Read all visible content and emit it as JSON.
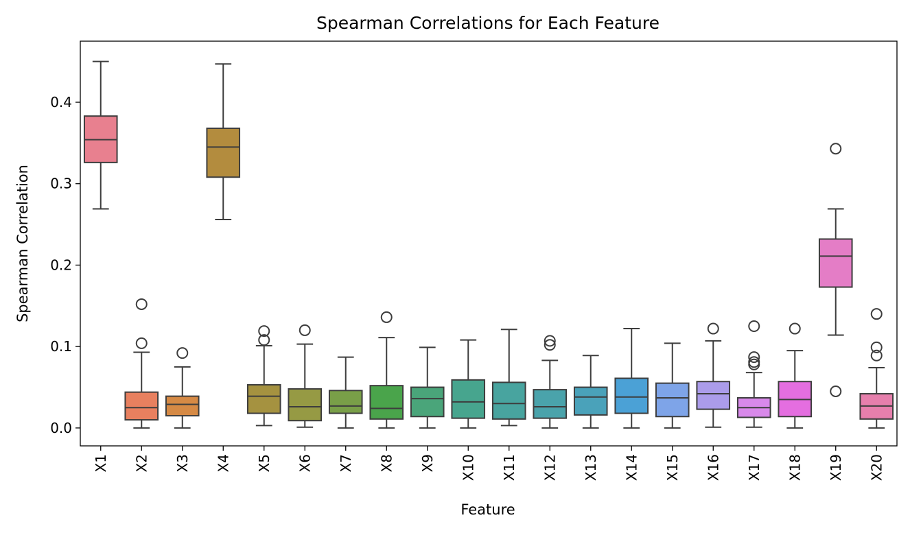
{
  "chart_data": {
    "type": "box",
    "title": "Spearman Correlations for Each Feature",
    "xlabel": "Feature",
    "ylabel": "Spearman Correlation",
    "ylim": [
      -0.022,
      0.475
    ],
    "yticks": [
      0.0,
      0.1,
      0.2,
      0.3,
      0.4
    ],
    "ytick_labels": [
      "0.0",
      "0.1",
      "0.2",
      "0.3",
      "0.4"
    ],
    "grid": false,
    "legend": "none",
    "categories": [
      "X1",
      "X2",
      "X3",
      "X4",
      "X5",
      "X6",
      "X7",
      "X8",
      "X9",
      "X10",
      "X11",
      "X12",
      "X13",
      "X14",
      "X15",
      "X16",
      "X17",
      "X18",
      "X19",
      "X20"
    ],
    "boxes": [
      {
        "name": "X1",
        "color": "#e8808f",
        "whisker_low": 0.269,
        "q1": 0.326,
        "median": 0.354,
        "q3": 0.383,
        "whisker_high": 0.45,
        "outliers": []
      },
      {
        "name": "X2",
        "color": "#e8805f",
        "whisker_low": 0.0,
        "q1": 0.01,
        "median": 0.025,
        "q3": 0.044,
        "whisker_high": 0.093,
        "outliers": [
          0.104,
          0.152
        ]
      },
      {
        "name": "X3",
        "color": "#d68a45",
        "whisker_low": 0.0,
        "q1": 0.015,
        "median": 0.029,
        "q3": 0.039,
        "whisker_high": 0.075,
        "outliers": [
          0.092
        ]
      },
      {
        "name": "X4",
        "color": "#b38c3e",
        "whisker_low": 0.256,
        "q1": 0.308,
        "median": 0.345,
        "q3": 0.368,
        "whisker_high": 0.447,
        "outliers": []
      },
      {
        "name": "X5",
        "color": "#a59240",
        "whisker_low": 0.003,
        "q1": 0.018,
        "median": 0.039,
        "q3": 0.053,
        "whisker_high": 0.101,
        "outliers": [
          0.108,
          0.119
        ]
      },
      {
        "name": "X6",
        "color": "#969a44",
        "whisker_low": 0.001,
        "q1": 0.009,
        "median": 0.026,
        "q3": 0.048,
        "whisker_high": 0.103,
        "outliers": [
          0.12
        ]
      },
      {
        "name": "X7",
        "color": "#799f48",
        "whisker_low": 0.0,
        "q1": 0.018,
        "median": 0.027,
        "q3": 0.046,
        "whisker_high": 0.087,
        "outliers": []
      },
      {
        "name": "X8",
        "color": "#4aa44b",
        "whisker_low": 0.0,
        "q1": 0.011,
        "median": 0.024,
        "q3": 0.052,
        "whisker_high": 0.111,
        "outliers": [
          0.136
        ]
      },
      {
        "name": "X9",
        "color": "#4aa57a",
        "whisker_low": 0.0,
        "q1": 0.014,
        "median": 0.036,
        "q3": 0.05,
        "whisker_high": 0.099,
        "outliers": []
      },
      {
        "name": "X10",
        "color": "#47a58e",
        "whisker_low": 0.0,
        "q1": 0.012,
        "median": 0.032,
        "q3": 0.059,
        "whisker_high": 0.108,
        "outliers": []
      },
      {
        "name": "X11",
        "color": "#48a49f",
        "whisker_low": 0.003,
        "q1": 0.011,
        "median": 0.03,
        "q3": 0.056,
        "whisker_high": 0.121,
        "outliers": []
      },
      {
        "name": "X12",
        "color": "#4aa3ab",
        "whisker_low": 0.0,
        "q1": 0.012,
        "median": 0.026,
        "q3": 0.047,
        "whisker_high": 0.083,
        "outliers": [
          0.102,
          0.107
        ]
      },
      {
        "name": "X13",
        "color": "#4aa2ba",
        "whisker_low": 0.0,
        "q1": 0.016,
        "median": 0.038,
        "q3": 0.05,
        "whisker_high": 0.089,
        "outliers": []
      },
      {
        "name": "X14",
        "color": "#4ba1d6",
        "whisker_low": 0.0,
        "q1": 0.018,
        "median": 0.038,
        "q3": 0.061,
        "whisker_high": 0.122,
        "outliers": []
      },
      {
        "name": "X15",
        "color": "#7ea4e8",
        "whisker_low": 0.0,
        "q1": 0.014,
        "median": 0.037,
        "q3": 0.055,
        "whisker_high": 0.104,
        "outliers": []
      },
      {
        "name": "X16",
        "color": "#ab9cea",
        "whisker_low": 0.001,
        "q1": 0.023,
        "median": 0.042,
        "q3": 0.057,
        "whisker_high": 0.107,
        "outliers": [
          0.122
        ]
      },
      {
        "name": "X17",
        "color": "#d889ea",
        "whisker_low": 0.001,
        "q1": 0.013,
        "median": 0.025,
        "q3": 0.037,
        "whisker_high": 0.068,
        "outliers": [
          0.078,
          0.081,
          0.087,
          0.125
        ]
      },
      {
        "name": "X18",
        "color": "#e46ee0",
        "whisker_low": 0.0,
        "q1": 0.014,
        "median": 0.035,
        "q3": 0.057,
        "whisker_high": 0.095,
        "outliers": [
          0.122
        ]
      },
      {
        "name": "X19",
        "color": "#e47dc6",
        "whisker_low": 0.114,
        "q1": 0.173,
        "median": 0.211,
        "q3": 0.232,
        "whisker_high": 0.269,
        "outliers": [
          0.045,
          0.343
        ]
      },
      {
        "name": "X20",
        "color": "#e67fac",
        "whisker_low": 0.0,
        "q1": 0.011,
        "median": 0.027,
        "q3": 0.042,
        "whisker_high": 0.074,
        "outliers": [
          0.089,
          0.099,
          0.14
        ]
      }
    ]
  },
  "style": {
    "line_color": "#3d3d3d",
    "axis_color": "#000000"
  }
}
